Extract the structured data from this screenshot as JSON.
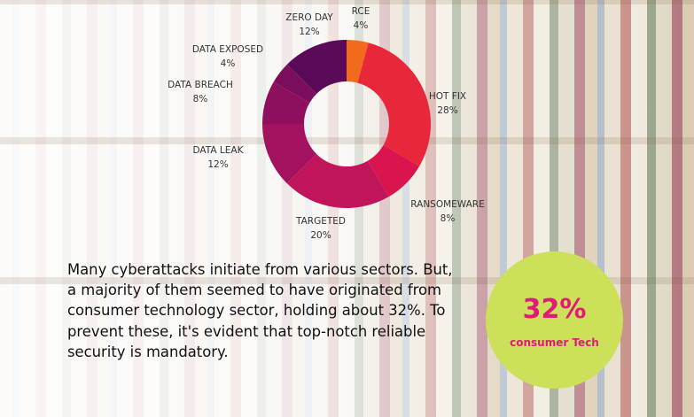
{
  "chart_data": {
    "type": "pie",
    "donut": true,
    "categories": [
      "RCE",
      "HOT FIX",
      "RANSOMEWARE",
      "TARGETED",
      "DATA LEAK",
      "DATA BREACH",
      "DATA EXPOSED",
      "ZERO DAY"
    ],
    "values": [
      4,
      28,
      8,
      20,
      12,
      8,
      4,
      12
    ],
    "value_labels": [
      "4%",
      "28%",
      "8%",
      "20%",
      "12%",
      "8%",
      "4%",
      "12%"
    ],
    "colors": [
      "#f26b1d",
      "#e8283a",
      "#d9144e",
      "#c0155a",
      "#a3125e",
      "#8d0f5e",
      "#7a0d5c",
      "#5a0a59"
    ],
    "legend": "none"
  },
  "text": {
    "paragraph": "Many cyberattacks initiate from various sectors. But, a majority of them seemed to have originated from consumer technology sector, holding about 32%. To prevent these, it's evident that top-notch reliable security is mandatory."
  },
  "callout": {
    "percent": "32%",
    "label": "consumer Tech",
    "color": "#cde05a",
    "text_color": "#e0197a"
  }
}
